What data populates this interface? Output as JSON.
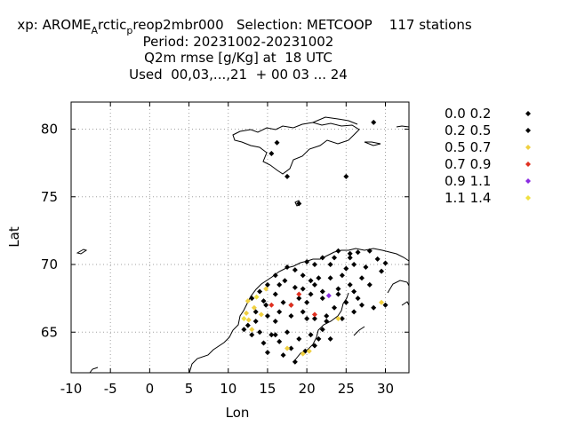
{
  "chart_data": {
    "type": "scatter",
    "title_lines": [
      "xp: AROME_A rctic_p reop2mbr000   Selection: METCOOP    117 stations",
      "Period: 20231002-20231002",
      "Q2m rmse [g/Kg] at  18 UTC",
      "Used  00,03,...,21  + 00 03 ... 24"
    ],
    "title": {
      "prefix": "xp: AROME",
      "sub1": "A",
      "mid": "rctic",
      "sub2": "p",
      "rest": "reop2mbr000   Selection: METCOOP    117 stations"
    },
    "xlabel": "Lon",
    "ylabel": "Lat",
    "xlim": [
      -10,
      33
    ],
    "ylim": [
      62,
      82
    ],
    "xticks": [
      -10,
      -5,
      0,
      5,
      10,
      15,
      20,
      25,
      30
    ],
    "yticks": [
      65,
      70,
      75,
      80
    ],
    "grid": true,
    "legend_position": "right",
    "legend": [
      {
        "label": "0.0 0.2",
        "color": "#000000"
      },
      {
        "label": "0.2 0.5",
        "color": "#000000"
      },
      {
        "label": "0.5 0.7",
        "color": "#f0d040"
      },
      {
        "label": "0.7 0.9",
        "color": "#e03020"
      },
      {
        "label": "0.9 1.1",
        "color": "#8a2be2"
      },
      {
        "label": "1.1 1.4",
        "color": "#f0e040"
      }
    ],
    "points": [
      {
        "x": 28.5,
        "y": 80.5,
        "bin": 0
      },
      {
        "x": 16.2,
        "y": 79.0,
        "bin": 0
      },
      {
        "x": 15.5,
        "y": 78.2,
        "bin": 0
      },
      {
        "x": 17.5,
        "y": 76.5,
        "bin": 0
      },
      {
        "x": 25.0,
        "y": 76.5,
        "bin": 0
      },
      {
        "x": 19.0,
        "y": 74.5,
        "bin": 0
      },
      {
        "x": 20.0,
        "y": 70.2,
        "bin": 0
      },
      {
        "x": 21.0,
        "y": 70.0,
        "bin": 0
      },
      {
        "x": 22.0,
        "y": 70.5,
        "bin": 0
      },
      {
        "x": 23.5,
        "y": 70.5,
        "bin": 0
      },
      {
        "x": 24.0,
        "y": 71.0,
        "bin": 0
      },
      {
        "x": 25.5,
        "y": 70.8,
        "bin": 0
      },
      {
        "x": 26.5,
        "y": 70.9,
        "bin": 0
      },
      {
        "x": 28.0,
        "y": 71.0,
        "bin": 0
      },
      {
        "x": 29.0,
        "y": 70.4,
        "bin": 0
      },
      {
        "x": 30.0,
        "y": 70.1,
        "bin": 0
      },
      {
        "x": 17.5,
        "y": 69.8,
        "bin": 0
      },
      {
        "x": 18.5,
        "y": 69.6,
        "bin": 0
      },
      {
        "x": 19.5,
        "y": 69.2,
        "bin": 0
      },
      {
        "x": 16.0,
        "y": 69.2,
        "bin": 0
      },
      {
        "x": 15.0,
        "y": 68.5,
        "bin": 0
      },
      {
        "x": 16.5,
        "y": 68.5,
        "bin": 0
      },
      {
        "x": 17.2,
        "y": 68.8,
        "bin": 0
      },
      {
        "x": 18.5,
        "y": 68.3,
        "bin": 0
      },
      {
        "x": 20.5,
        "y": 68.8,
        "bin": 0
      },
      {
        "x": 21.5,
        "y": 69.0,
        "bin": 0
      },
      {
        "x": 23.0,
        "y": 69.0,
        "bin": 0
      },
      {
        "x": 24.5,
        "y": 69.2,
        "bin": 0
      },
      {
        "x": 25.5,
        "y": 68.5,
        "bin": 0
      },
      {
        "x": 27.0,
        "y": 69.0,
        "bin": 0
      },
      {
        "x": 28.0,
        "y": 68.5,
        "bin": 0
      },
      {
        "x": 14.0,
        "y": 68.0,
        "bin": 0
      },
      {
        "x": 14.5,
        "y": 67.3,
        "bin": 0
      },
      {
        "x": 16.0,
        "y": 67.8,
        "bin": 0
      },
      {
        "x": 17.0,
        "y": 67.2,
        "bin": 0
      },
      {
        "x": 19.0,
        "y": 67.5,
        "bin": 0
      },
      {
        "x": 20.5,
        "y": 67.8,
        "bin": 0
      },
      {
        "x": 22.0,
        "y": 67.5,
        "bin": 0
      },
      {
        "x": 24.0,
        "y": 67.8,
        "bin": 0
      },
      {
        "x": 25.0,
        "y": 67.2,
        "bin": 0
      },
      {
        "x": 27.0,
        "y": 67.0,
        "bin": 0
      },
      {
        "x": 13.0,
        "y": 67.5,
        "bin": 0
      },
      {
        "x": 13.5,
        "y": 66.5,
        "bin": 0
      },
      {
        "x": 15.0,
        "y": 66.2,
        "bin": 0
      },
      {
        "x": 16.5,
        "y": 66.5,
        "bin": 0
      },
      {
        "x": 18.0,
        "y": 66.2,
        "bin": 0
      },
      {
        "x": 19.5,
        "y": 66.5,
        "bin": 0
      },
      {
        "x": 21.0,
        "y": 66.0,
        "bin": 0
      },
      {
        "x": 22.5,
        "y": 66.2,
        "bin": 0
      },
      {
        "x": 23.5,
        "y": 66.8,
        "bin": 0
      },
      {
        "x": 26.0,
        "y": 66.5,
        "bin": 0
      },
      {
        "x": 28.5,
        "y": 66.8,
        "bin": 0
      },
      {
        "x": 12.5,
        "y": 65.5,
        "bin": 0
      },
      {
        "x": 14.0,
        "y": 65.0,
        "bin": 0
      },
      {
        "x": 15.5,
        "y": 64.8,
        "bin": 0
      },
      {
        "x": 17.5,
        "y": 65.0,
        "bin": 0
      },
      {
        "x": 19.0,
        "y": 64.5,
        "bin": 0
      },
      {
        "x": 20.5,
        "y": 64.8,
        "bin": 0
      },
      {
        "x": 22.0,
        "y": 65.2,
        "bin": 0
      },
      {
        "x": 23.0,
        "y": 64.5,
        "bin": 0
      },
      {
        "x": 12.0,
        "y": 65.2,
        "bin": 0
      },
      {
        "x": 14.5,
        "y": 64.2,
        "bin": 0
      },
      {
        "x": 16.5,
        "y": 64.3,
        "bin": 0
      },
      {
        "x": 18.0,
        "y": 63.8,
        "bin": 0
      },
      {
        "x": 19.8,
        "y": 63.6,
        "bin": 0
      },
      {
        "x": 21.0,
        "y": 64.0,
        "bin": 0
      },
      {
        "x": 15.0,
        "y": 63.5,
        "bin": 0
      },
      {
        "x": 17.0,
        "y": 63.3,
        "bin": 0
      },
      {
        "x": 18.5,
        "y": 62.8,
        "bin": 0
      },
      {
        "x": 26.0,
        "y": 70.0,
        "bin": 1
      },
      {
        "x": 27.5,
        "y": 69.8,
        "bin": 1
      },
      {
        "x": 29.5,
        "y": 69.5,
        "bin": 1
      },
      {
        "x": 25.0,
        "y": 69.7,
        "bin": 1
      },
      {
        "x": 23.0,
        "y": 70.0,
        "bin": 1
      },
      {
        "x": 18.0,
        "y": 67.0,
        "bin": 1
      },
      {
        "x": 20.0,
        "y": 67.2,
        "bin": 1
      },
      {
        "x": 22.0,
        "y": 68.0,
        "bin": 1
      },
      {
        "x": 24.5,
        "y": 66.0,
        "bin": 1
      },
      {
        "x": 26.5,
        "y": 67.5,
        "bin": 1
      },
      {
        "x": 16.0,
        "y": 65.8,
        "bin": 1
      },
      {
        "x": 20.0,
        "y": 66.0,
        "bin": 1
      },
      {
        "x": 22.5,
        "y": 65.8,
        "bin": 1
      },
      {
        "x": 13.0,
        "y": 64.8,
        "bin": 1
      },
      {
        "x": 16.0,
        "y": 64.8,
        "bin": 1
      },
      {
        "x": 21.5,
        "y": 64.5,
        "bin": 1
      },
      {
        "x": 13.5,
        "y": 65.8,
        "bin": 1
      },
      {
        "x": 14.8,
        "y": 67.0,
        "bin": 1
      },
      {
        "x": 19.5,
        "y": 68.2,
        "bin": 1
      },
      {
        "x": 21.0,
        "y": 68.5,
        "bin": 1
      },
      {
        "x": 24.0,
        "y": 68.2,
        "bin": 1
      },
      {
        "x": 26.0,
        "y": 68.0,
        "bin": 1
      },
      {
        "x": 30.0,
        "y": 67.0,
        "bin": 1
      },
      {
        "x": 25.5,
        "y": 70.5,
        "bin": 1
      },
      {
        "x": 12.5,
        "y": 67.3,
        "bin": 2
      },
      {
        "x": 13.3,
        "y": 66.8,
        "bin": 2
      },
      {
        "x": 12.3,
        "y": 66.4,
        "bin": 2
      },
      {
        "x": 12.6,
        "y": 65.9,
        "bin": 2
      },
      {
        "x": 14.2,
        "y": 66.3,
        "bin": 2
      },
      {
        "x": 13.0,
        "y": 65.2,
        "bin": 2
      },
      {
        "x": 17.5,
        "y": 63.8,
        "bin": 2
      },
      {
        "x": 19.5,
        "y": 63.4,
        "bin": 2
      },
      {
        "x": 20.3,
        "y": 63.6,
        "bin": 2
      },
      {
        "x": 24.0,
        "y": 66.0,
        "bin": 2
      },
      {
        "x": 29.5,
        "y": 67.2,
        "bin": 2
      },
      {
        "x": 14.8,
        "y": 68.2,
        "bin": 2
      },
      {
        "x": 15.5,
        "y": 67.0,
        "bin": 3
      },
      {
        "x": 18.0,
        "y": 67.0,
        "bin": 3
      },
      {
        "x": 19.0,
        "y": 67.8,
        "bin": 3
      },
      {
        "x": 21.0,
        "y": 66.3,
        "bin": 3
      },
      {
        "x": 22.8,
        "y": 67.7,
        "bin": 4
      },
      {
        "x": 12.0,
        "y": 66.0,
        "bin": 5
      },
      {
        "x": 13.6,
        "y": 67.6,
        "bin": 5
      }
    ]
  }
}
